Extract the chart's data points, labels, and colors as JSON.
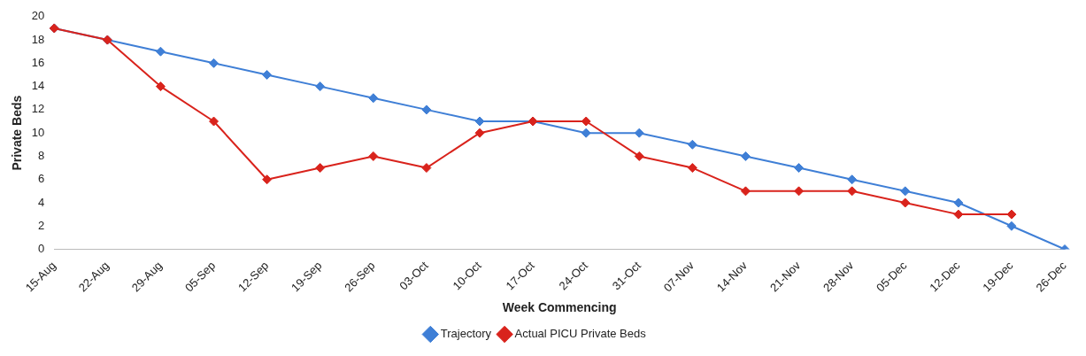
{
  "chart_data": {
    "type": "line",
    "xlabel": "Week Commencing",
    "ylabel": "Private Beds",
    "categories": [
      "15-Aug",
      "22-Aug",
      "29-Aug",
      "05-Sep",
      "12-Sep",
      "19-Sep",
      "26-Sep",
      "03-Oct",
      "10-Oct",
      "17-Oct",
      "24-Oct",
      "31-Oct",
      "07-Nov",
      "14-Nov",
      "21-Nov",
      "28-Nov",
      "05-Dec",
      "12-Dec",
      "19-Dec",
      "26-Dec"
    ],
    "series": [
      {
        "name": "Trajectory",
        "color": "#3f7fd6",
        "values": [
          19,
          18,
          17,
          16,
          15,
          14,
          13,
          12,
          11,
          11,
          10,
          10,
          9,
          8,
          7,
          6,
          5,
          4,
          2,
          0
        ]
      },
      {
        "name": "Actual PICU Private Beds",
        "color": "#d9231c",
        "values": [
          19,
          18,
          14,
          11,
          6,
          7,
          8,
          7,
          10,
          11,
          11,
          8,
          7,
          5,
          5,
          5,
          4,
          3,
          3,
          null
        ]
      }
    ],
    "ylim": [
      0,
      20
    ],
    "yticks": [
      0,
      2,
      4,
      6,
      8,
      10,
      12,
      14,
      16,
      18,
      20
    ],
    "grid": false,
    "legend": "bottom",
    "marker": "diamond",
    "line_style": "solid"
  }
}
